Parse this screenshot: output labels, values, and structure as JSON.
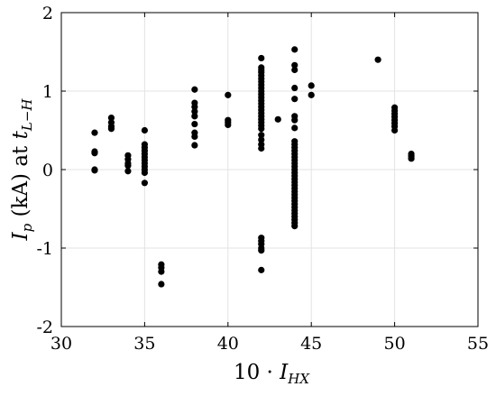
{
  "chart_data": {
    "type": "scatter",
    "xlim": [
      30,
      55
    ],
    "ylim": [
      -2,
      2
    ],
    "x_ticks": [
      30,
      35,
      40,
      45,
      50,
      55
    ],
    "y_ticks": [
      -2,
      -1,
      0,
      1,
      2
    ],
    "x_tick_labels": [
      "30",
      "35",
      "40",
      "45",
      "50",
      "55"
    ],
    "y_tick_labels": [
      "-2",
      "-1",
      "0",
      "1",
      "2"
    ],
    "grid": true,
    "box": true,
    "marker_color": "#000000",
    "xlabel": {
      "prefix": "10 · ",
      "main": "I",
      "subscript": "HX"
    },
    "ylabel": {
      "main": "I",
      "subscript_p": "p",
      "middle": " (kA) at ",
      "t": "t",
      "subscript_t": "L−H"
    },
    "points": [
      [
        32,
        0.47
      ],
      [
        32,
        0.23
      ],
      [
        32,
        0.21
      ],
      [
        32,
        0.0
      ],
      [
        32,
        -0.01
      ],
      [
        33,
        0.66
      ],
      [
        33,
        0.6
      ],
      [
        33,
        0.55
      ],
      [
        33,
        0.52
      ],
      [
        34,
        0.18
      ],
      [
        34,
        0.13
      ],
      [
        34,
        0.08
      ],
      [
        34,
        0.05
      ],
      [
        34,
        -0.02
      ],
      [
        35,
        0.5
      ],
      [
        35,
        0.32
      ],
      [
        35,
        0.28
      ],
      [
        35,
        0.24
      ],
      [
        35,
        0.2
      ],
      [
        35,
        0.16
      ],
      [
        35,
        0.12
      ],
      [
        35,
        0.08
      ],
      [
        35,
        0.04
      ],
      [
        35,
        0.0
      ],
      [
        35,
        -0.04
      ],
      [
        35,
        -0.17
      ],
      [
        36,
        -1.21
      ],
      [
        36,
        -1.25
      ],
      [
        36,
        -1.3
      ],
      [
        36,
        -1.46
      ],
      [
        38,
        1.02
      ],
      [
        38,
        0.85
      ],
      [
        38,
        0.8
      ],
      [
        38,
        0.74
      ],
      [
        38,
        0.68
      ],
      [
        38,
        0.58
      ],
      [
        38,
        0.47
      ],
      [
        38,
        0.42
      ],
      [
        38,
        0.31
      ],
      [
        40,
        0.95
      ],
      [
        40,
        0.63
      ],
      [
        40,
        0.6
      ],
      [
        40,
        0.57
      ],
      [
        42,
        1.42
      ],
      [
        42,
        1.3
      ],
      [
        42,
        1.27
      ],
      [
        42,
        1.24
      ],
      [
        42,
        1.2
      ],
      [
        42,
        1.16
      ],
      [
        42,
        1.12
      ],
      [
        42,
        1.08
      ],
      [
        42,
        1.04
      ],
      [
        42,
        1.0
      ],
      [
        42,
        0.96
      ],
      [
        42,
        0.92
      ],
      [
        42,
        0.88
      ],
      [
        42,
        0.84
      ],
      [
        42,
        0.8
      ],
      [
        42,
        0.76
      ],
      [
        42,
        0.72
      ],
      [
        42,
        0.68
      ],
      [
        42,
        0.64
      ],
      [
        42,
        0.6
      ],
      [
        42,
        0.56
      ],
      [
        42,
        0.52
      ],
      [
        42,
        0.44
      ],
      [
        42,
        0.38
      ],
      [
        42,
        0.32
      ],
      [
        42,
        0.27
      ],
      [
        42,
        -0.87
      ],
      [
        42,
        -0.91
      ],
      [
        42,
        -0.95
      ],
      [
        42,
        -1.0
      ],
      [
        42,
        -1.03
      ],
      [
        42,
        -1.28
      ],
      [
        43,
        0.64
      ],
      [
        44,
        1.53
      ],
      [
        44,
        1.33
      ],
      [
        44,
        1.27
      ],
      [
        44,
        1.04
      ],
      [
        44,
        0.9
      ],
      [
        44,
        0.68
      ],
      [
        44,
        0.63
      ],
      [
        44,
        0.53
      ],
      [
        44,
        0.36
      ],
      [
        44,
        0.32
      ],
      [
        44,
        0.28
      ],
      [
        44,
        0.24
      ],
      [
        44,
        0.2
      ],
      [
        44,
        0.16
      ],
      [
        44,
        0.12
      ],
      [
        44,
        0.08
      ],
      [
        44,
        0.04
      ],
      [
        44,
        0.0
      ],
      [
        44,
        -0.04
      ],
      [
        44,
        -0.08
      ],
      [
        44,
        -0.12
      ],
      [
        44,
        -0.16
      ],
      [
        44,
        -0.2
      ],
      [
        44,
        -0.24
      ],
      [
        44,
        -0.28
      ],
      [
        44,
        -0.32
      ],
      [
        44,
        -0.36
      ],
      [
        44,
        -0.4
      ],
      [
        44,
        -0.44
      ],
      [
        44,
        -0.48
      ],
      [
        44,
        -0.52
      ],
      [
        44,
        -0.56
      ],
      [
        44,
        -0.6
      ],
      [
        44,
        -0.64
      ],
      [
        44,
        -0.68
      ],
      [
        44,
        -0.72
      ],
      [
        45,
        1.07
      ],
      [
        45,
        0.95
      ],
      [
        49,
        1.4
      ],
      [
        50,
        0.79
      ],
      [
        50,
        0.75
      ],
      [
        50,
        0.71
      ],
      [
        50,
        0.67
      ],
      [
        50,
        0.63
      ],
      [
        50,
        0.59
      ],
      [
        50,
        0.55
      ],
      [
        50,
        0.5
      ],
      [
        51,
        0.2
      ],
      [
        51,
        0.17
      ],
      [
        51,
        0.14
      ]
    ]
  }
}
